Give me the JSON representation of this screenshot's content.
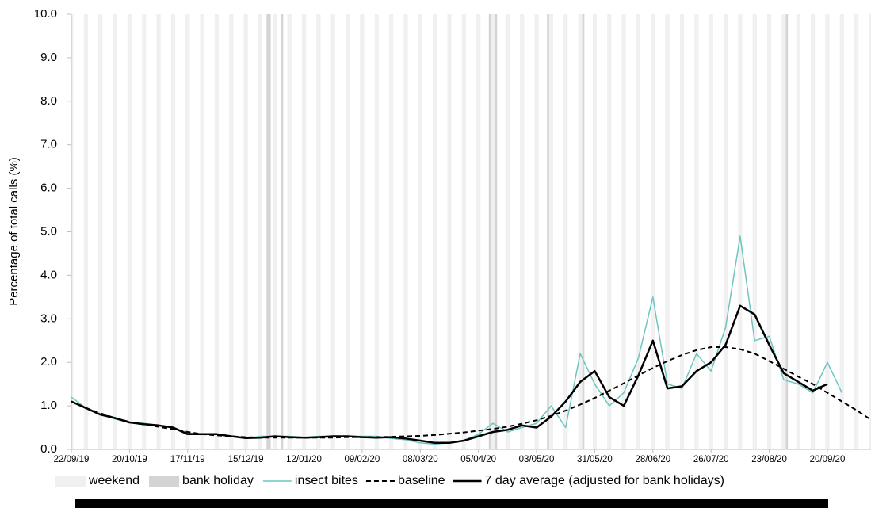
{
  "chart_data": {
    "type": "line",
    "y_label": "Percentage of total calls (%)",
    "x": [
      "22/09/19",
      "29/09/19",
      "06/10/19",
      "13/10/19",
      "20/10/19",
      "27/10/19",
      "03/11/19",
      "10/11/19",
      "17/11/19",
      "24/11/19",
      "01/12/19",
      "08/12/19",
      "15/12/19",
      "22/12/19",
      "29/12/19",
      "05/01/20",
      "12/01/20",
      "19/01/20",
      "26/01/20",
      "02/02/20",
      "09/02/20",
      "16/02/20",
      "23/02/20",
      "01/03/20",
      "08/03/20",
      "15/03/20",
      "22/03/20",
      "29/03/20",
      "05/04/20",
      "12/04/20",
      "19/04/20",
      "26/04/20",
      "03/05/20",
      "10/05/20",
      "17/05/20",
      "24/05/20",
      "31/05/20",
      "07/06/20",
      "14/06/20",
      "21/06/20",
      "28/06/20",
      "05/07/20",
      "12/07/20",
      "19/07/20",
      "26/07/20",
      "02/08/20",
      "09/08/20",
      "16/08/20",
      "23/08/20",
      "30/08/20",
      "06/09/20",
      "13/09/20",
      "20/09/20",
      "27/09/20",
      "04/10/20",
      "11/10/20"
    ],
    "series": [
      {
        "name": "insect bites",
        "color": "#6cc5c0",
        "width": 1.5,
        "dash": false,
        "values": [
          1.2,
          0.95,
          0.8,
          0.7,
          0.62,
          0.6,
          0.55,
          0.5,
          0.38,
          0.35,
          0.35,
          0.3,
          0.25,
          0.3,
          0.3,
          0.3,
          0.27,
          0.3,
          0.3,
          0.3,
          0.3,
          0.3,
          0.25,
          0.22,
          0.15,
          0.12,
          0.15,
          0.2,
          0.35,
          0.6,
          0.4,
          0.5,
          0.6,
          1.0,
          0.5,
          2.2,
          1.5,
          1.0,
          1.3,
          2.1,
          3.5,
          1.5,
          1.4,
          2.2,
          1.8,
          2.8,
          4.9,
          2.5,
          2.6,
          1.6,
          1.5,
          1.3,
          2.0,
          1.3,
          null,
          null
        ]
      },
      {
        "name": "baseline",
        "color": "#000000",
        "width": 2,
        "dash": true,
        "values": [
          1.1,
          0.95,
          0.83,
          0.72,
          0.63,
          0.57,
          0.52,
          0.46,
          0.4,
          0.35,
          0.32,
          0.3,
          0.28,
          0.27,
          0.27,
          0.27,
          0.27,
          0.27,
          0.27,
          0.28,
          0.28,
          0.28,
          0.29,
          0.3,
          0.31,
          0.33,
          0.36,
          0.39,
          0.43,
          0.47,
          0.52,
          0.59,
          0.67,
          0.77,
          0.89,
          1.03,
          1.18,
          1.35,
          1.52,
          1.7,
          1.87,
          2.03,
          2.17,
          2.28,
          2.35,
          2.35,
          2.3,
          2.2,
          2.03,
          1.85,
          1.67,
          1.5,
          1.3,
          1.1,
          0.9,
          0.68
        ]
      },
      {
        "name": "7 day average (adjusted for bank holidays)",
        "color": "#000000",
        "width": 2.5,
        "dash": false,
        "values": [
          1.1,
          0.95,
          0.8,
          0.72,
          0.62,
          0.58,
          0.55,
          0.5,
          0.35,
          0.35,
          0.35,
          0.3,
          0.26,
          0.27,
          0.3,
          0.28,
          0.27,
          0.28,
          0.3,
          0.3,
          0.28,
          0.27,
          0.28,
          0.25,
          0.2,
          0.15,
          0.15,
          0.2,
          0.3,
          0.4,
          0.45,
          0.55,
          0.5,
          0.75,
          1.1,
          1.55,
          1.8,
          1.2,
          1.0,
          1.7,
          2.5,
          1.4,
          1.45,
          1.8,
          2.0,
          2.4,
          3.3,
          3.1,
          2.4,
          1.75,
          1.55,
          1.35,
          1.5,
          null,
          null,
          null
        ]
      }
    ],
    "shading": [
      {
        "name": "weekend",
        "color": "#f0f0f0"
      },
      {
        "name": "bank holiday",
        "color": "#d4d4d4",
        "dates": [
          "25/12/19",
          "26/12/19",
          "01/01/20",
          "10/04/20",
          "13/04/20",
          "08/05/20",
          "25/05/20",
          "31/08/20"
        ]
      }
    ],
    "xlim": [
      "22/09/19",
      "11/10/20"
    ],
    "xticks": [
      "22/09/19",
      "20/10/19",
      "17/11/19",
      "15/12/19",
      "12/01/20",
      "09/02/20",
      "08/03/20",
      "05/04/20",
      "03/05/20",
      "31/05/20",
      "28/06/20",
      "26/07/20",
      "23/08/20",
      "20/09/20"
    ],
    "ylim": [
      0,
      10
    ],
    "yticks": [
      {
        "value": 0,
        "label": "0.0"
      },
      {
        "value": 1,
        "label": "1.0"
      },
      {
        "value": 2,
        "label": "2.0"
      },
      {
        "value": 3,
        "label": "3.0"
      },
      {
        "value": 4,
        "label": "4.0"
      },
      {
        "value": 5,
        "label": "5.0"
      },
      {
        "value": 6,
        "label": "6.0"
      },
      {
        "value": 7,
        "label": "7.0"
      },
      {
        "value": 8,
        "label": "8.0"
      },
      {
        "value": 9,
        "label": "9.0"
      },
      {
        "value": 10,
        "label": "10.0"
      }
    ],
    "grid": false
  }
}
